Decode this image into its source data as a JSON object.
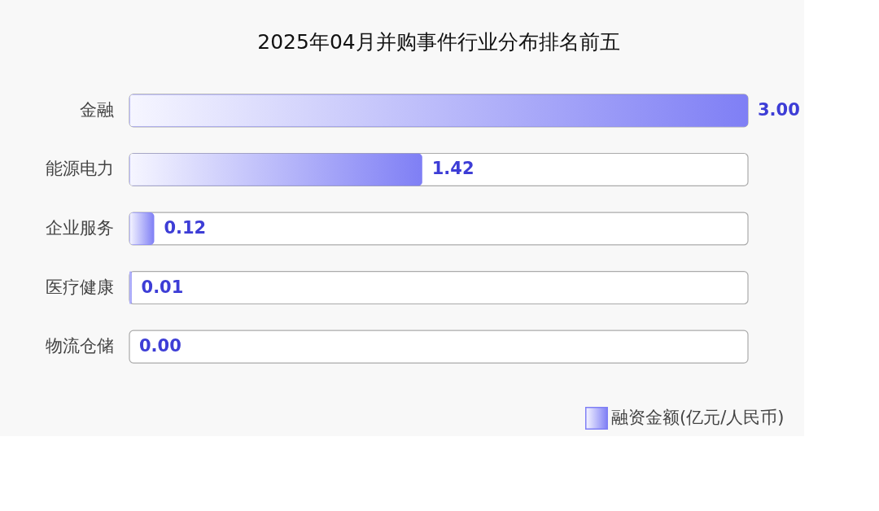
{
  "chart_data": {
    "type": "bar",
    "orientation": "horizontal",
    "title": "2025年04月并购事件行业分布排名前五",
    "categories": [
      "金融",
      "能源电力",
      "企业服务",
      "医疗健康",
      "物流仓储"
    ],
    "series": [
      {
        "name": "融资金额(亿元/人民币)",
        "color": "#7f7ff5",
        "values": [
          3.0,
          1.42,
          0.12,
          0.01,
          0.0
        ],
        "value_labels": [
          "3.00",
          "1.42",
          "0.12",
          "0.01",
          "0.00"
        ]
      }
    ],
    "xlim": [
      0,
      3
    ],
    "tick_labels": "y",
    "legend": "bottom right",
    "grid": false
  }
}
